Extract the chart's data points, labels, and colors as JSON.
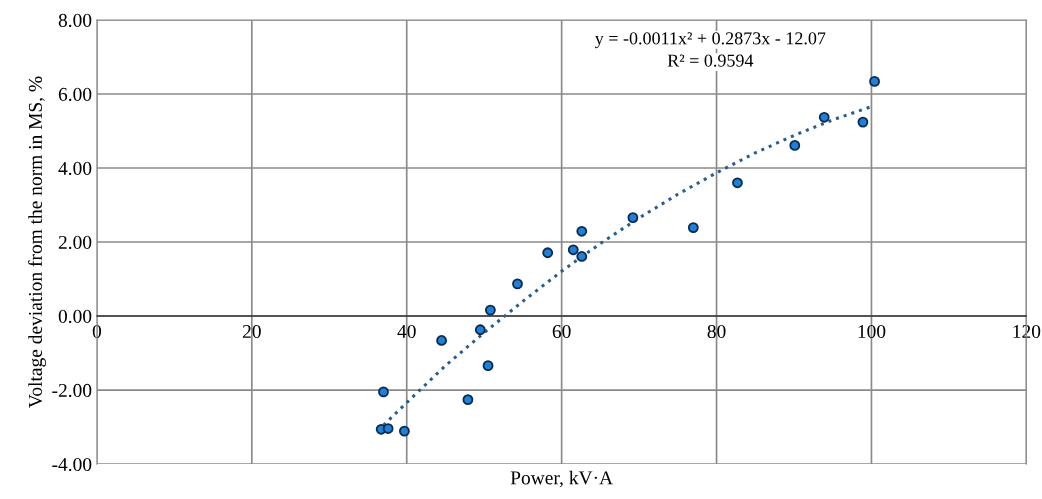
{
  "chart_data": {
    "type": "scatter",
    "xlabel": "Power, kV·A",
    "ylabel": "Voltage deviation from the norm in MS, %",
    "xlim": [
      0,
      120
    ],
    "xticks": [
      0,
      20,
      40,
      60,
      80,
      100,
      120
    ],
    "ylim": [
      -4,
      8
    ],
    "yticks": [
      {
        "value": -4,
        "label": "-4.00"
      },
      {
        "value": -2,
        "label": "-2.00"
      },
      {
        "value": 0,
        "label": "0.00"
      },
      {
        "value": 2,
        "label": "2.00"
      },
      {
        "value": 4,
        "label": "4.00"
      },
      {
        "value": 6,
        "label": "6.00"
      },
      {
        "value": 8,
        "label": "8.00"
      }
    ],
    "grid": true,
    "legend": false,
    "annotations": [
      "y = -0.0011x² + 0.2873x - 12.07",
      "R² = 0.9594"
    ],
    "series": [
      {
        "color": "#1f80d8",
        "marker": "circle",
        "x": [
          37.0,
          36.7,
          37.6,
          39.7,
          44.5,
          47.9,
          49.5,
          50.5,
          50.8,
          54.3,
          58.2,
          61.5,
          62.6,
          62.6,
          69.2,
          77.0,
          82.7,
          90.1,
          93.9,
          98.9,
          100.4
        ],
        "values": [
          -2.05,
          -3.06,
          -3.04,
          -3.11,
          -0.66,
          -2.26,
          -0.37,
          -1.34,
          0.16,
          0.87,
          1.71,
          1.79,
          1.61,
          2.29,
          2.66,
          2.39,
          3.6,
          4.61,
          5.37,
          5.24,
          6.34
        ]
      },
      {
        "type": "line",
        "color": "#2a5d8f",
        "line_style": "dotted",
        "marker": "none",
        "x": [
          37,
          40,
          45,
          50,
          55,
          60,
          65,
          70,
          75,
          80,
          85,
          90,
          95,
          100
        ],
        "values": [
          -2.95,
          -2.34,
          -1.34,
          -0.45,
          0.4,
          1.21,
          1.96,
          2.65,
          3.29,
          3.87,
          4.41,
          4.88,
          5.3,
          5.66
        ]
      }
    ]
  }
}
